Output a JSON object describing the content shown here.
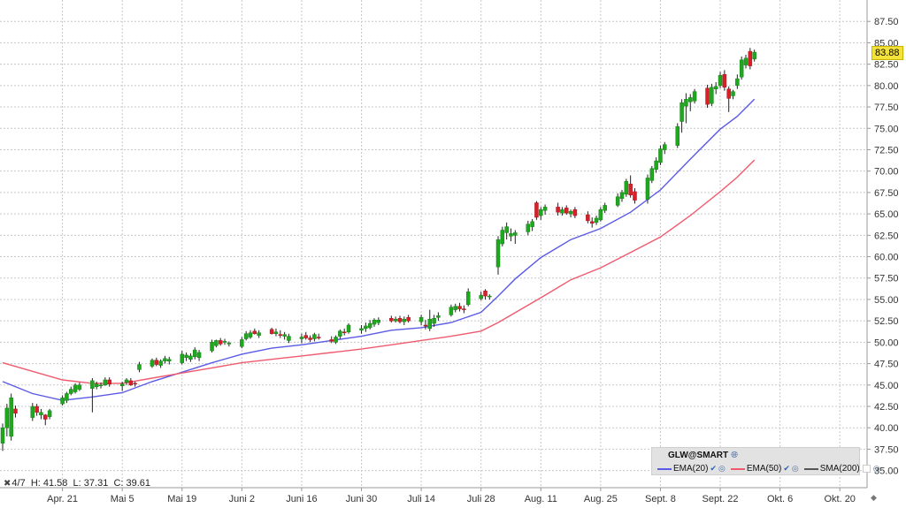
{
  "chart_data": {
    "type": "candlestick",
    "symbol": "GLW@SMART",
    "last_price": "83.88",
    "ylim": [
      33,
      90
    ],
    "yticks": [
      35,
      37.5,
      40,
      42.5,
      45,
      47.5,
      50,
      52.5,
      55,
      57.5,
      60,
      62.5,
      65,
      67.5,
      70,
      72.5,
      75,
      77.5,
      80,
      82.5,
      85,
      87.5
    ],
    "ytick_labels": [
      "35.00",
      "37.50",
      "40.00",
      "42.50",
      "45.00",
      "47.50",
      "50.00",
      "52.50",
      "55.00",
      "57.50",
      "60.00",
      "62.50",
      "65.00",
      "67.50",
      "70.00",
      "72.50",
      "75.00",
      "77.50",
      "80.00",
      "82.50",
      "85.00",
      "87.50"
    ],
    "x_tick_labels": [
      "Apr. 21",
      "Mai 5",
      "Mai 19",
      "Juni 2",
      "Juni 16",
      "Juni 30",
      "Juli 14",
      "Juli 28",
      "Aug. 11",
      "Aug. 25",
      "Sept. 8",
      "Sept. 22",
      "Okt. 6",
      "Okt. 20"
    ],
    "x_tick_days": [
      14,
      28,
      42,
      56,
      70,
      84,
      98,
      112,
      126,
      140,
      154,
      168,
      182,
      196
    ],
    "x_day_range": [
      0,
      203
    ],
    "candles": [
      {
        "d": 0,
        "o": 38.2,
        "h": 40.5,
        "l": 37.3,
        "c": 40.0
      },
      {
        "d": 1,
        "o": 40.0,
        "h": 42.8,
        "l": 39.0,
        "c": 42.3
      },
      {
        "d": 2,
        "o": 39.0,
        "h": 44.0,
        "l": 38.5,
        "c": 43.5
      },
      {
        "d": 3,
        "o": 42.2,
        "h": 42.6,
        "l": 41.2,
        "c": 41.7
      },
      {
        "d": 7,
        "o": 41.2,
        "h": 42.9,
        "l": 40.8,
        "c": 42.5
      },
      {
        "d": 8,
        "o": 42.5,
        "h": 42.8,
        "l": 41.4,
        "c": 41.8
      },
      {
        "d": 9,
        "o": 41.5,
        "h": 42.2,
        "l": 41.0,
        "c": 41.8
      },
      {
        "d": 10,
        "o": 41.5,
        "h": 41.6,
        "l": 40.3,
        "c": 41.0
      },
      {
        "d": 11,
        "o": 41.3,
        "h": 42.2,
        "l": 41.0,
        "c": 42.0
      },
      {
        "d": 14,
        "o": 42.8,
        "h": 43.8,
        "l": 42.6,
        "c": 43.5
      },
      {
        "d": 15,
        "o": 43.2,
        "h": 44.2,
        "l": 42.9,
        "c": 44.0
      },
      {
        "d": 16,
        "o": 44.0,
        "h": 44.8,
        "l": 43.8,
        "c": 44.5
      },
      {
        "d": 17,
        "o": 44.2,
        "h": 45.2,
        "l": 44.0,
        "c": 45.0
      },
      {
        "d": 18,
        "o": 44.5,
        "h": 45.3,
        "l": 44.3,
        "c": 45.0
      },
      {
        "d": 21,
        "o": 44.6,
        "h": 45.8,
        "l": 41.8,
        "c": 45.5
      },
      {
        "d": 22,
        "o": 44.8,
        "h": 45.4,
        "l": 44.5,
        "c": 45.1
      },
      {
        "d": 23,
        "o": 45.0,
        "h": 45.3,
        "l": 44.6,
        "c": 45.0
      },
      {
        "d": 24,
        "o": 45.0,
        "h": 45.9,
        "l": 44.9,
        "c": 45.6
      },
      {
        "d": 25,
        "o": 45.6,
        "h": 45.9,
        "l": 44.8,
        "c": 45.1
      },
      {
        "d": 28,
        "o": 44.9,
        "h": 45.4,
        "l": 44.3,
        "c": 45.1
      },
      {
        "d": 29,
        "o": 45.3,
        "h": 45.8,
        "l": 45.0,
        "c": 45.6
      },
      {
        "d": 30,
        "o": 45.5,
        "h": 45.8,
        "l": 44.9,
        "c": 45.0
      },
      {
        "d": 31,
        "o": 45.2,
        "h": 45.4,
        "l": 44.8,
        "c": 45.1
      },
      {
        "d": 32,
        "o": 46.8,
        "h": 47.7,
        "l": 46.5,
        "c": 47.4
      },
      {
        "d": 35,
        "o": 47.2,
        "h": 48.1,
        "l": 47.0,
        "c": 47.9
      },
      {
        "d": 36,
        "o": 47.9,
        "h": 48.2,
        "l": 47.2,
        "c": 47.4
      },
      {
        "d": 37,
        "o": 47.3,
        "h": 48.0,
        "l": 47.0,
        "c": 47.8
      },
      {
        "d": 38,
        "o": 47.8,
        "h": 48.4,
        "l": 47.5,
        "c": 48.1
      },
      {
        "d": 39,
        "o": 47.8,
        "h": 48.3,
        "l": 47.4,
        "c": 48.0
      },
      {
        "d": 42,
        "o": 47.6,
        "h": 49.0,
        "l": 47.4,
        "c": 48.6
      },
      {
        "d": 43,
        "o": 48.2,
        "h": 48.8,
        "l": 47.8,
        "c": 48.5
      },
      {
        "d": 44,
        "o": 48.0,
        "h": 48.7,
        "l": 47.7,
        "c": 48.4
      },
      {
        "d": 45,
        "o": 48.3,
        "h": 49.4,
        "l": 48.0,
        "c": 49.1
      },
      {
        "d": 46,
        "o": 48.2,
        "h": 49.1,
        "l": 47.8,
        "c": 48.8
      },
      {
        "d": 49,
        "o": 49.0,
        "h": 50.3,
        "l": 48.8,
        "c": 50.0
      },
      {
        "d": 50,
        "o": 49.6,
        "h": 50.3,
        "l": 49.4,
        "c": 50.2
      },
      {
        "d": 51,
        "o": 50.2,
        "h": 50.5,
        "l": 49.6,
        "c": 49.8
      },
      {
        "d": 52,
        "o": 50.0,
        "h": 50.4,
        "l": 49.7,
        "c": 50.1
      },
      {
        "d": 53,
        "o": 49.8,
        "h": 50.1,
        "l": 49.5,
        "c": 49.9
      },
      {
        "d": 56,
        "o": 49.5,
        "h": 50.6,
        "l": 49.3,
        "c": 50.3
      },
      {
        "d": 57,
        "o": 50.4,
        "h": 51.3,
        "l": 50.2,
        "c": 51.0
      },
      {
        "d": 58,
        "o": 50.6,
        "h": 51.4,
        "l": 50.4,
        "c": 51.1
      },
      {
        "d": 59,
        "o": 51.3,
        "h": 51.6,
        "l": 50.9,
        "c": 51.0
      },
      {
        "d": 60,
        "o": 50.8,
        "h": 51.4,
        "l": 50.5,
        "c": 51.1
      },
      {
        "d": 63,
        "o": 51.5,
        "h": 51.7,
        "l": 50.9,
        "c": 51.0
      },
      {
        "d": 64,
        "o": 51.0,
        "h": 51.6,
        "l": 50.7,
        "c": 51.2
      },
      {
        "d": 65,
        "o": 50.9,
        "h": 51.4,
        "l": 50.5,
        "c": 50.8
      },
      {
        "d": 66,
        "o": 50.7,
        "h": 51.2,
        "l": 50.3,
        "c": 50.9
      },
      {
        "d": 67,
        "o": 50.2,
        "h": 51.0,
        "l": 49.9,
        "c": 50.7
      },
      {
        "d": 70,
        "o": 50.4,
        "h": 51.0,
        "l": 49.9,
        "c": 50.6
      },
      {
        "d": 71,
        "o": 50.8,
        "h": 51.2,
        "l": 50.3,
        "c": 50.5
      },
      {
        "d": 72,
        "o": 50.5,
        "h": 50.8,
        "l": 50.0,
        "c": 50.3
      },
      {
        "d": 73,
        "o": 50.4,
        "h": 51.1,
        "l": 50.1,
        "c": 50.9
      },
      {
        "d": 74,
        "o": 50.6,
        "h": 51.0,
        "l": 50.3,
        "c": 50.5
      },
      {
        "d": 77,
        "o": 50.3,
        "h": 50.7,
        "l": 49.9,
        "c": 50.1
      },
      {
        "d": 78,
        "o": 50.0,
        "h": 50.8,
        "l": 49.8,
        "c": 50.6
      },
      {
        "d": 79,
        "o": 50.7,
        "h": 51.5,
        "l": 50.4,
        "c": 51.3
      },
      {
        "d": 80,
        "o": 51.2,
        "h": 51.6,
        "l": 50.8,
        "c": 51.1
      },
      {
        "d": 81,
        "o": 51.2,
        "h": 52.2,
        "l": 51.0,
        "c": 52.0
      },
      {
        "d": 84,
        "o": 51.4,
        "h": 52.0,
        "l": 51.0,
        "c": 51.6
      },
      {
        "d": 85,
        "o": 51.6,
        "h": 52.3,
        "l": 51.2,
        "c": 51.9
      },
      {
        "d": 86,
        "o": 51.7,
        "h": 52.6,
        "l": 51.5,
        "c": 52.2
      },
      {
        "d": 87,
        "o": 52.1,
        "h": 52.8,
        "l": 51.8,
        "c": 52.6
      },
      {
        "d": 88,
        "o": 52.3,
        "h": 52.9,
        "l": 52.0,
        "c": 52.6
      },
      {
        "d": 91,
        "o": 52.8,
        "h": 53.1,
        "l": 52.3,
        "c": 52.5
      },
      {
        "d": 92,
        "o": 52.5,
        "h": 53.0,
        "l": 52.3,
        "c": 52.7
      },
      {
        "d": 93,
        "o": 52.8,
        "h": 53.1,
        "l": 52.2,
        "c": 52.4
      },
      {
        "d": 94,
        "o": 52.4,
        "h": 53.0,
        "l": 52.0,
        "c": 52.7
      },
      {
        "d": 95,
        "o": 52.9,
        "h": 53.2,
        "l": 52.3,
        "c": 52.5
      },
      {
        "d": 98,
        "o": 52.4,
        "h": 53.2,
        "l": 52.0,
        "c": 52.9
      },
      {
        "d": 99,
        "o": 52.0,
        "h": 52.6,
        "l": 51.5,
        "c": 51.9
      },
      {
        "d": 100,
        "o": 51.6,
        "h": 53.8,
        "l": 51.3,
        "c": 52.7
      },
      {
        "d": 101,
        "o": 52.2,
        "h": 53.2,
        "l": 51.8,
        "c": 52.8
      },
      {
        "d": 102,
        "o": 52.9,
        "h": 53.5,
        "l": 52.5,
        "c": 53.1
      },
      {
        "d": 105,
        "o": 53.2,
        "h": 54.4,
        "l": 53.0,
        "c": 54.1
      },
      {
        "d": 106,
        "o": 53.8,
        "h": 54.5,
        "l": 53.5,
        "c": 54.2
      },
      {
        "d": 107,
        "o": 54.2,
        "h": 54.6,
        "l": 53.6,
        "c": 53.9
      },
      {
        "d": 108,
        "o": 53.9,
        "h": 54.3,
        "l": 53.4,
        "c": 53.8
      },
      {
        "d": 109,
        "o": 54.4,
        "h": 56.3,
        "l": 54.2,
        "c": 55.9
      },
      {
        "d": 112,
        "o": 55.1,
        "h": 55.9,
        "l": 54.9,
        "c": 55.5
      },
      {
        "d": 113,
        "o": 56.0,
        "h": 56.2,
        "l": 55.0,
        "c": 55.4
      },
      {
        "d": 114,
        "o": 55.3,
        "h": 55.6,
        "l": 55.0,
        "c": 55.4
      },
      {
        "d": 116,
        "o": 58.8,
        "h": 62.4,
        "l": 57.9,
        "c": 62.0
      },
      {
        "d": 117,
        "o": 61.5,
        "h": 63.5,
        "l": 61.2,
        "c": 63.1
      },
      {
        "d": 118,
        "o": 62.8,
        "h": 64.0,
        "l": 62.0,
        "c": 63.5
      },
      {
        "d": 119,
        "o": 62.4,
        "h": 63.3,
        "l": 61.8,
        "c": 62.7
      },
      {
        "d": 120,
        "o": 62.5,
        "h": 63.1,
        "l": 61.5,
        "c": 62.8
      },
      {
        "d": 123,
        "o": 62.9,
        "h": 64.2,
        "l": 62.5,
        "c": 63.8
      },
      {
        "d": 124,
        "o": 63.5,
        "h": 64.4,
        "l": 63.0,
        "c": 64.1
      },
      {
        "d": 125,
        "o": 66.3,
        "h": 66.5,
        "l": 64.3,
        "c": 64.6
      },
      {
        "d": 126,
        "o": 64.8,
        "h": 65.8,
        "l": 64.3,
        "c": 65.5
      },
      {
        "d": 127,
        "o": 65.4,
        "h": 66.1,
        "l": 64.9,
        "c": 65.8
      },
      {
        "d": 130,
        "o": 65.8,
        "h": 66.3,
        "l": 64.8,
        "c": 65.2
      },
      {
        "d": 131,
        "o": 65.1,
        "h": 65.8,
        "l": 64.8,
        "c": 65.5
      },
      {
        "d": 132,
        "o": 65.7,
        "h": 66.0,
        "l": 64.9,
        "c": 65.1
      },
      {
        "d": 133,
        "o": 65.0,
        "h": 65.5,
        "l": 64.6,
        "c": 65.3
      },
      {
        "d": 134,
        "o": 65.5,
        "h": 65.8,
        "l": 64.5,
        "c": 64.8
      },
      {
        "d": 137,
        "o": 64.9,
        "h": 65.3,
        "l": 63.9,
        "c": 64.2
      },
      {
        "d": 138,
        "o": 64.1,
        "h": 64.6,
        "l": 63.4,
        "c": 63.9
      },
      {
        "d": 139,
        "o": 64.0,
        "h": 64.8,
        "l": 63.7,
        "c": 64.5
      },
      {
        "d": 140,
        "o": 64.3,
        "h": 65.8,
        "l": 64.1,
        "c": 65.5
      },
      {
        "d": 141,
        "o": 65.4,
        "h": 66.3,
        "l": 65.1,
        "c": 66.0
      },
      {
        "d": 144,
        "o": 66.0,
        "h": 67.4,
        "l": 65.8,
        "c": 67.0
      },
      {
        "d": 145,
        "o": 66.8,
        "h": 67.8,
        "l": 66.4,
        "c": 67.5
      },
      {
        "d": 146,
        "o": 67.3,
        "h": 69.1,
        "l": 67.0,
        "c": 68.8
      },
      {
        "d": 147,
        "o": 68.5,
        "h": 69.5,
        "l": 66.9,
        "c": 67.2
      },
      {
        "d": 148,
        "o": 67.6,
        "h": 68.0,
        "l": 66.2,
        "c": 66.6
      },
      {
        "d": 151,
        "o": 66.7,
        "h": 69.6,
        "l": 66.2,
        "c": 69.2
      },
      {
        "d": 152,
        "o": 68.9,
        "h": 70.6,
        "l": 68.6,
        "c": 70.3
      },
      {
        "d": 153,
        "o": 70.2,
        "h": 71.6,
        "l": 69.8,
        "c": 71.2
      },
      {
        "d": 154,
        "o": 71.0,
        "h": 73.0,
        "l": 70.7,
        "c": 72.6
      },
      {
        "d": 155,
        "o": 72.5,
        "h": 73.4,
        "l": 72.0,
        "c": 73.1
      },
      {
        "d": 158,
        "o": 73.0,
        "h": 75.6,
        "l": 72.7,
        "c": 75.2
      },
      {
        "d": 159,
        "o": 75.8,
        "h": 78.4,
        "l": 74.5,
        "c": 78.0
      },
      {
        "d": 160,
        "o": 77.6,
        "h": 79.1,
        "l": 75.6,
        "c": 78.4
      },
      {
        "d": 161,
        "o": 78.1,
        "h": 79.0,
        "l": 77.0,
        "c": 78.6
      },
      {
        "d": 162,
        "o": 78.2,
        "h": 79.6,
        "l": 77.9,
        "c": 79.3
      },
      {
        "d": 165,
        "o": 79.7,
        "h": 80.1,
        "l": 77.4,
        "c": 77.8
      },
      {
        "d": 166,
        "o": 77.9,
        "h": 80.2,
        "l": 77.6,
        "c": 79.8
      },
      {
        "d": 167,
        "o": 79.6,
        "h": 80.4,
        "l": 79.0,
        "c": 79.9
      },
      {
        "d": 168,
        "o": 80.0,
        "h": 81.6,
        "l": 79.7,
        "c": 81.2
      },
      {
        "d": 169,
        "o": 81.3,
        "h": 81.8,
        "l": 79.4,
        "c": 79.8
      },
      {
        "d": 170,
        "o": 79.6,
        "h": 79.9,
        "l": 76.9,
        "c": 78.5
      },
      {
        "d": 171,
        "o": 78.8,
        "h": 79.5,
        "l": 78.4,
        "c": 79.3
      },
      {
        "d": 172,
        "o": 80.0,
        "h": 81.3,
        "l": 79.6,
        "c": 80.8
      },
      {
        "d": 173,
        "o": 81.0,
        "h": 83.4,
        "l": 80.7,
        "c": 83.0
      },
      {
        "d": 174,
        "o": 82.4,
        "h": 83.6,
        "l": 82.0,
        "c": 83.2
      },
      {
        "d": 175,
        "o": 84.0,
        "h": 84.4,
        "l": 81.9,
        "c": 82.3
      },
      {
        "d": 176,
        "o": 83.1,
        "h": 84.2,
        "l": 82.8,
        "c": 83.9
      }
    ],
    "series": [
      {
        "name": "EMA(20)",
        "color": "#5a5ae6",
        "points": [
          [
            0,
            45.4
          ],
          [
            7,
            44.0
          ],
          [
            14,
            43.2
          ],
          [
            21,
            43.6
          ],
          [
            28,
            44.1
          ],
          [
            35,
            45.4
          ],
          [
            42,
            46.5
          ],
          [
            49,
            47.6
          ],
          [
            56,
            48.6
          ],
          [
            63,
            49.3
          ],
          [
            70,
            49.7
          ],
          [
            77,
            50.2
          ],
          [
            84,
            50.7
          ],
          [
            91,
            51.4
          ],
          [
            98,
            51.7
          ],
          [
            105,
            52.3
          ],
          [
            112,
            53.5
          ],
          [
            116,
            55.4
          ],
          [
            120,
            57.4
          ],
          [
            126,
            59.9
          ],
          [
            133,
            62.0
          ],
          [
            140,
            63.3
          ],
          [
            147,
            65.2
          ],
          [
            154,
            67.8
          ],
          [
            161,
            71.4
          ],
          [
            168,
            74.9
          ],
          [
            172,
            76.4
          ],
          [
            176,
            78.4
          ]
        ]
      },
      {
        "name": "EMA(50)",
        "color": "#f05a6e",
        "points": [
          [
            0,
            47.6
          ],
          [
            7,
            46.6
          ],
          [
            14,
            45.6
          ],
          [
            21,
            45.2
          ],
          [
            28,
            45.2
          ],
          [
            35,
            45.8
          ],
          [
            42,
            46.4
          ],
          [
            49,
            47.0
          ],
          [
            56,
            47.6
          ],
          [
            63,
            48.0
          ],
          [
            70,
            48.4
          ],
          [
            77,
            48.8
          ],
          [
            84,
            49.2
          ],
          [
            91,
            49.7
          ],
          [
            98,
            50.2
          ],
          [
            105,
            50.7
          ],
          [
            112,
            51.3
          ],
          [
            116,
            52.3
          ],
          [
            126,
            55.2
          ],
          [
            133,
            57.3
          ],
          [
            140,
            58.7
          ],
          [
            147,
            60.5
          ],
          [
            154,
            62.3
          ],
          [
            161,
            64.8
          ],
          [
            168,
            67.6
          ],
          [
            172,
            69.3
          ],
          [
            176,
            71.3
          ]
        ]
      },
      {
        "name": "SMA(200)",
        "color": "#555555",
        "points": []
      }
    ],
    "legend": {
      "title": "GLW@SMART",
      "entries": [
        "EMA(20)",
        "EMA(50)",
        "SMA(200)"
      ],
      "placement": "bottom-right"
    },
    "grid": true,
    "colors": {
      "up": "#1fa81f",
      "down": "#d8202a",
      "wick": "#222222"
    }
  },
  "ohlc_readout": {
    "date": "4/7",
    "high_label": "H:",
    "high": "41.58",
    "low_label": "L:",
    "low": "37.31",
    "close_label": "C:",
    "close": "39.61"
  }
}
